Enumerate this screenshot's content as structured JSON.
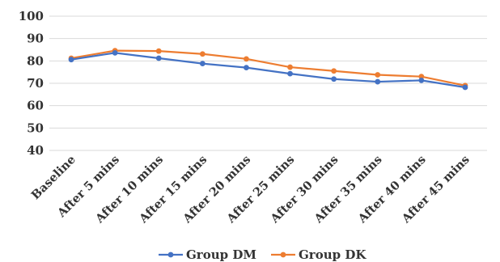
{
  "chart_data": {
    "type": "line",
    "categories": [
      "Baseline",
      "After 5 mins",
      "After 10 mins",
      "After 15 mins",
      "After 20 mins",
      "After 25 mins",
      "After 30 mins",
      "After 35 mins",
      "After 40 mins",
      "After 45 mins"
    ],
    "series": [
      {
        "name": "Group DM",
        "color": "#4472c4",
        "values": [
          80.6,
          83.6,
          81.2,
          78.8,
          77.0,
          74.3,
          71.9,
          70.7,
          71.3,
          68.2
        ]
      },
      {
        "name": "Group DK",
        "color": "#ed7d31",
        "values": [
          81.2,
          84.6,
          84.4,
          83.1,
          80.9,
          77.2,
          75.5,
          73.8,
          73.0,
          69.0
        ]
      }
    ],
    "yticks": [
      40,
      50,
      60,
      70,
      80,
      90,
      100
    ],
    "ylim": [
      40,
      100
    ],
    "grid": true,
    "legend": "bottom"
  }
}
